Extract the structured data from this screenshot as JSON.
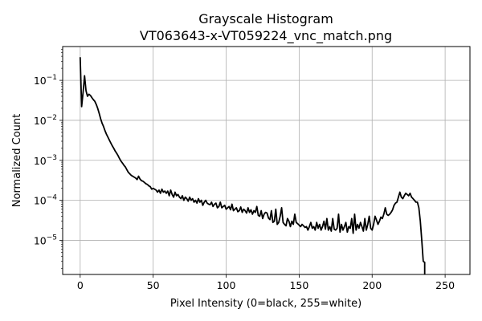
{
  "chart_data": {
    "type": "line",
    "title": "Grayscale Histogram",
    "subtitle": "VT063643-x-VT059224_vnc_match.png",
    "xlabel": "Pixel Intensity (0=black, 255=white)",
    "ylabel": "Normalized Count",
    "xlim": [
      -12,
      267
    ],
    "ylim": [
      1.4e-06,
      0.7
    ],
    "yscale": "log",
    "grid": true,
    "line_color": "#000000",
    "grid_color": "#b0b0b0",
    "x_ticks": [
      {
        "value": 0,
        "label": "0"
      },
      {
        "value": 50,
        "label": "50"
      },
      {
        "value": 100,
        "label": "100"
      },
      {
        "value": 150,
        "label": "150"
      },
      {
        "value": 200,
        "label": "200"
      },
      {
        "value": 250,
        "label": "250"
      }
    ],
    "y_ticks": [
      {
        "value": 0.1,
        "base": "10",
        "exp": "−1"
      },
      {
        "value": 0.01,
        "base": "10",
        "exp": "−2"
      },
      {
        "value": 0.001,
        "base": "10",
        "exp": "−3"
      },
      {
        "value": 0.0001,
        "base": "10",
        "exp": "−4"
      },
      {
        "value": 1e-05,
        "base": "10",
        "exp": "−5"
      }
    ],
    "series": [
      {
        "x": [
          0,
          1,
          2,
          3,
          4,
          5,
          6,
          7,
          8,
          9,
          10,
          11,
          12,
          13,
          14,
          15,
          16,
          17,
          18,
          19,
          20,
          21,
          22,
          23,
          24,
          25,
          26,
          27,
          28,
          29,
          30,
          31,
          32,
          33,
          34,
          35,
          36,
          37,
          38,
          39,
          40,
          41,
          42,
          43,
          44,
          45,
          46,
          47,
          48,
          49,
          50,
          51,
          52,
          53,
          54,
          55,
          56,
          57,
          58,
          59,
          60,
          61,
          62,
          63,
          64,
          65,
          66,
          67,
          68,
          69,
          70,
          71,
          72,
          73,
          74,
          75,
          76,
          77,
          78,
          79,
          80,
          81,
          82,
          83,
          84,
          85,
          86,
          87,
          88,
          89,
          90,
          91,
          92,
          93,
          94,
          95,
          96,
          97,
          98,
          99,
          100,
          101,
          102,
          103,
          104,
          105,
          106,
          107,
          108,
          109,
          110,
          111,
          112,
          113,
          114,
          115,
          116,
          117,
          118,
          119,
          120,
          121,
          122,
          123,
          124,
          125,
          126,
          127,
          128,
          129,
          130,
          131,
          132,
          133,
          134,
          135,
          136,
          137,
          138,
          139,
          140,
          141,
          142,
          143,
          144,
          145,
          146,
          147,
          148,
          149,
          150,
          151,
          152,
          153,
          154,
          155,
          156,
          157,
          158,
          159,
          160,
          161,
          162,
          163,
          164,
          165,
          166,
          167,
          168,
          169,
          170,
          171,
          172,
          173,
          174,
          175,
          176,
          177,
          178,
          179,
          180,
          181,
          182,
          183,
          184,
          185,
          186,
          187,
          188,
          189,
          190,
          191,
          192,
          193,
          194,
          195,
          196,
          197,
          198,
          199,
          200,
          201,
          202,
          203,
          204,
          205,
          206,
          207,
          208,
          209,
          210,
          211,
          212,
          213,
          214,
          215,
          216,
          217,
          218,
          219,
          220,
          221,
          222,
          223,
          224,
          225,
          226,
          227,
          228,
          229,
          230,
          231,
          232,
          233,
          234,
          235,
          236
        ],
        "values": [
          0.38,
          0.022,
          0.05,
          0.13,
          0.055,
          0.04,
          0.045,
          0.042,
          0.037,
          0.033,
          0.03,
          0.025,
          0.02,
          0.015,
          0.011,
          0.0085,
          0.007,
          0.0055,
          0.0045,
          0.0038,
          0.0032,
          0.0027,
          0.0023,
          0.002,
          0.0017,
          0.0015,
          0.0013,
          0.0011,
          0.00095,
          0.00085,
          0.00075,
          0.00068,
          0.00058,
          0.0005,
          0.00046,
          0.00042,
          0.0004,
          0.00038,
          0.00036,
          0.00033,
          0.0004,
          0.00034,
          0.00031,
          0.0003,
          0.00028,
          0.00026,
          0.00025,
          0.00023,
          0.00022,
          0.00019,
          0.0002,
          0.00019,
          0.00018,
          0.00016,
          0.00018,
          0.00015,
          0.00019,
          0.00016,
          0.00017,
          0.00015,
          0.00017,
          0.00013,
          0.00018,
          0.00014,
          0.00012,
          0.00016,
          0.00013,
          0.00014,
          0.00012,
          0.00011,
          0.00013,
          0.0001,
          0.00012,
          0.00011,
          9.5e-05,
          0.00012,
          0.0001,
          0.00011,
          9e-05,
          0.0001,
          8.5e-05,
          0.00011,
          9e-05,
          0.0001,
          7.5e-05,
          9e-05,
          0.0001,
          8.5e-05,
          8e-05,
          7.8e-05,
          9e-05,
          7e-05,
          8e-05,
          8.5e-05,
          6.5e-05,
          7e-05,
          9e-05,
          6.5e-05,
          7e-05,
          7.5e-05,
          6e-05,
          6.5e-05,
          7e-05,
          5.8e-05,
          8e-05,
          5.5e-05,
          6e-05,
          6.5e-05,
          5.2e-05,
          5.5e-05,
          6.8e-05,
          5e-05,
          6e-05,
          5.5e-05,
          4.8e-05,
          6.5e-05,
          5e-05,
          5.8e-05,
          4.5e-05,
          5.5e-05,
          5e-05,
          7e-05,
          4.2e-05,
          4e-05,
          5.5e-05,
          3.5e-05,
          4.5e-05,
          5e-05,
          4.8e-05,
          3.6e-05,
          3.3e-05,
          5.5e-05,
          2.8e-05,
          3e-05,
          6e-05,
          2.5e-05,
          2.8e-05,
          4e-05,
          6.5e-05,
          2.8e-05,
          2.5e-05,
          2.3e-05,
          3.5e-05,
          3e-05,
          2.2e-05,
          3e-05,
          2.5e-05,
          4.5e-05,
          2.8e-05,
          2.6e-05,
          2.4e-05,
          2.2e-05,
          2.5e-05,
          2.3e-05,
          2.1e-05,
          2.2e-05,
          1.8e-05,
          2.2e-05,
          2.8e-05,
          2e-05,
          2.2e-05,
          1.8e-05,
          2.8e-05,
          2e-05,
          2.5e-05,
          1.8e-05,
          2.2e-05,
          3e-05,
          1.9e-05,
          3.5e-05,
          1.8e-05,
          2.2e-05,
          1.7e-05,
          3.5e-05,
          1.9e-05,
          1.8e-05,
          2e-05,
          4.5e-05,
          1.6e-05,
          2.5e-05,
          1.8e-05,
          2.2e-05,
          2.8e-05,
          1.6e-05,
          2.2e-05,
          2e-05,
          3.5e-05,
          1.5e-05,
          4.5e-05,
          1.8e-05,
          2.5e-05,
          2e-05,
          2.8e-05,
          2.2e-05,
          1.7e-05,
          3.5e-05,
          1.8e-05,
          2.5e-05,
          4e-05,
          2e-05,
          1.8e-05,
          2.5e-05,
          4e-05,
          3.2e-05,
          2.5e-05,
          3e-05,
          3.8e-05,
          3.5e-05,
          4.5e-05,
          6.5e-05,
          4.5e-05,
          4.2e-05,
          4.5e-05,
          5e-05,
          5.8e-05,
          7.5e-05,
          8.5e-05,
          9e-05,
          0.00012,
          0.00016,
          0.00012,
          0.00011,
          0.00013,
          0.00015,
          0.00014,
          0.00013,
          0.00015,
          0.00012,
          0.00011,
          0.0001,
          9e-05,
          9e-05,
          6.5e-05,
          3e-05,
          1e-05,
          3e-06,
          2.8e-06
        ]
      }
    ]
  }
}
